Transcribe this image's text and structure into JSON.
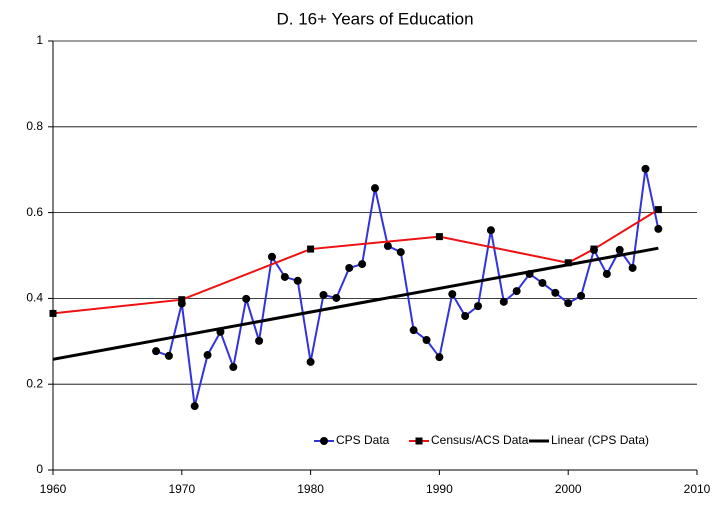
{
  "chart_data": {
    "type": "line",
    "title": "D. 16+ Years of Education",
    "xlim": [
      1960,
      2010
    ],
    "xticks": [
      1960,
      1970,
      1980,
      1990,
      2000,
      2010
    ],
    "ylim": [
      0,
      1
    ],
    "yticks": [
      0,
      0.2,
      0.4,
      0.6,
      0.8,
      1
    ],
    "grid": true,
    "legend": "bottom-right",
    "series": [
      {
        "name": "CPS Data",
        "color": "#3333dd",
        "marker": "circle",
        "x": [
          1968,
          1969,
          1970,
          1971,
          1972,
          1973,
          1974,
          1975,
          1976,
          1977,
          1978,
          1979,
          1980,
          1981,
          1982,
          1983,
          1984,
          1985,
          1986,
          1987,
          1988,
          1989,
          1990,
          1991,
          1992,
          1993,
          1994,
          1995,
          1996,
          1997,
          1998,
          1999,
          2000,
          2001,
          2002,
          2003,
          2004,
          2005,
          2006,
          2007
        ],
        "values": [
          0.277,
          0.266,
          0.388,
          0.149,
          0.268,
          0.322,
          0.24,
          0.399,
          0.301,
          0.497,
          0.45,
          0.441,
          0.252,
          0.408,
          0.401,
          0.471,
          0.48,
          0.657,
          0.522,
          0.508,
          0.326,
          0.303,
          0.263,
          0.41,
          0.359,
          0.382,
          0.559,
          0.392,
          0.417,
          0.457,
          0.436,
          0.413,
          0.389,
          0.406,
          0.513,
          0.457,
          0.513,
          0.471,
          0.702,
          0.562
        ]
      },
      {
        "name": "Census/ACS Data",
        "color": "#ee1111",
        "marker": "square",
        "x": [
          1960,
          1970,
          1980,
          1990,
          2000,
          2002,
          2007
        ],
        "values": [
          0.365,
          0.397,
          0.515,
          0.544,
          0.483,
          0.515,
          0.607
        ]
      },
      {
        "name": "Linear (CPS Data)",
        "color": "#000000",
        "marker": "none",
        "x": [
          1960,
          2007
        ],
        "values": [
          0.258,
          0.517
        ]
      }
    ]
  }
}
